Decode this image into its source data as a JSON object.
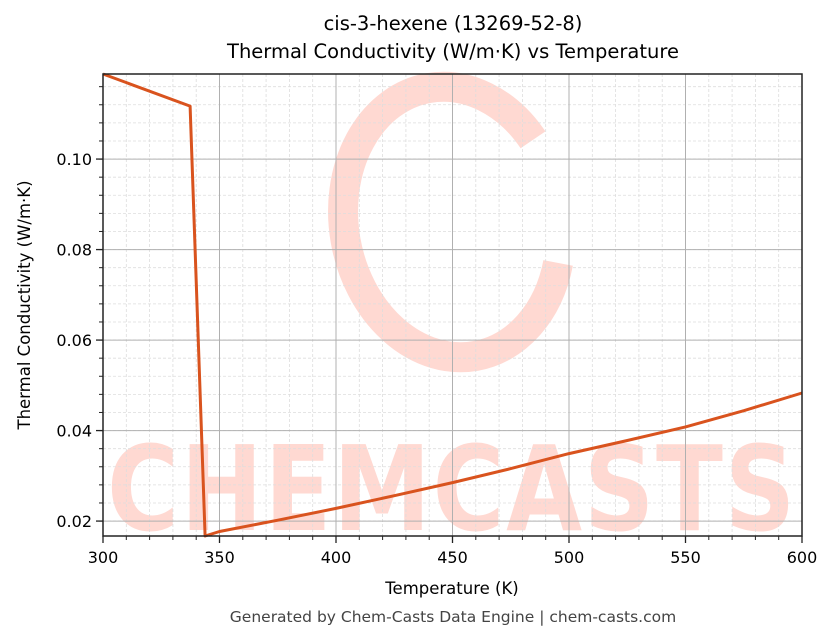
{
  "title": {
    "line1": "cis-3-hexene (13269-52-8)",
    "line2": "Thermal Conductivity (W/m·K) vs Temperature"
  },
  "footer": "Generated by Chem-Casts Data Engine | chem-casts.com",
  "watermark": {
    "text": "CHEMCASTS",
    "color": "#FFD9D2"
  },
  "colors": {
    "line": "#D9531E",
    "major_grid": "#b0b0b0",
    "minor_grid": "#dddddd",
    "frame": "#222222"
  },
  "chart_data": {
    "type": "line",
    "title": "cis-3-hexene (13269-52-8) Thermal Conductivity (W/m·K) vs Temperature",
    "xlabel": "Temperature (K)",
    "ylabel": "Thermal Conductivity (W/m·K)",
    "xlim": [
      300,
      600
    ],
    "ylim": [
      0.0167,
      0.1188
    ],
    "xticks": [
      300,
      350,
      400,
      450,
      500,
      550,
      600
    ],
    "xtick_labels": [
      "300",
      "350",
      "400",
      "450",
      "500",
      "550",
      "600"
    ],
    "yticks": [
      0.02,
      0.04,
      0.06,
      0.08,
      0.1
    ],
    "ytick_labels": [
      "0.02",
      "0.04",
      "0.06",
      "0.08",
      "0.10"
    ],
    "x_minor_step": 10,
    "y_minor_step": 0.004,
    "grid": true,
    "legend": null,
    "series": [
      {
        "name": "Thermal Conductivity",
        "x": [
          300,
          337.4,
          343.8,
          350,
          375,
          400,
          425,
          450,
          475,
          500,
          525,
          550,
          575,
          600
        ],
        "values": [
          0.1188,
          0.1117,
          0.0167,
          0.0177,
          0.0202,
          0.0228,
          0.0256,
          0.0285,
          0.0316,
          0.0349,
          0.0378,
          0.0408,
          0.0444,
          0.0483
        ]
      }
    ]
  }
}
